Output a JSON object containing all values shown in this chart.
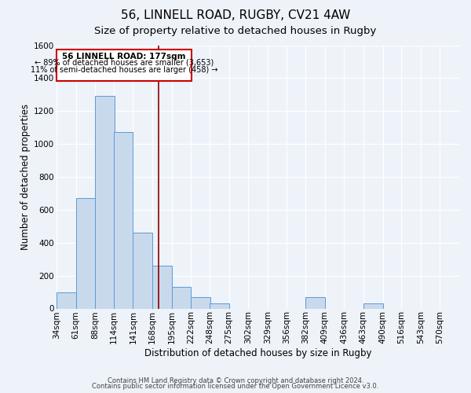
{
  "title": "56, LINNELL ROAD, RUGBY, CV21 4AW",
  "subtitle": "Size of property relative to detached houses in Rugby",
  "xlabel": "Distribution of detached houses by size in Rugby",
  "ylabel": "Number of detached properties",
  "footer_line1": "Contains HM Land Registry data © Crown copyright and database right 2024.",
  "footer_line2": "Contains public sector information licensed under the Open Government Licence v3.0.",
  "bin_labels": [
    "34sqm",
    "61sqm",
    "88sqm",
    "114sqm",
    "141sqm",
    "168sqm",
    "195sqm",
    "222sqm",
    "248sqm",
    "275sqm",
    "302sqm",
    "329sqm",
    "356sqm",
    "382sqm",
    "409sqm",
    "436sqm",
    "463sqm",
    "490sqm",
    "516sqm",
    "543sqm",
    "570sqm"
  ],
  "bin_left_edges": [
    34,
    61,
    88,
    114,
    141,
    168,
    195,
    222,
    248,
    275,
    302,
    329,
    356,
    382,
    409,
    436,
    463,
    490,
    516,
    543,
    570
  ],
  "bar_heights": [
    100,
    670,
    1290,
    1070,
    460,
    260,
    130,
    70,
    30,
    0,
    0,
    0,
    0,
    70,
    0,
    0,
    30,
    0,
    0,
    0
  ],
  "bar_color": "#c9d9ec",
  "bar_edge_color": "#5b9bd5",
  "property_size": 177,
  "vline_color": "#8b0000",
  "annotation_box_edge_color": "#cc0000",
  "annotation_text_line1": "56 LINNELL ROAD: 177sqm",
  "annotation_text_line2": "← 89% of detached houses are smaller (3,653)",
  "annotation_text_line3": "11% of semi-detached houses are larger (458) →",
  "ylim": [
    0,
    1600
  ],
  "yticks": [
    0,
    200,
    400,
    600,
    800,
    1000,
    1200,
    1400,
    1600
  ],
  "background_color": "#eef2f9",
  "plot_bg_color": "#eef2f9",
  "grid_color": "#ffffff",
  "title_fontsize": 11,
  "subtitle_fontsize": 9.5,
  "axis_label_fontsize": 8.5,
  "tick_fontsize": 7.5,
  "annotation_fontsize_line1": 7.5,
  "annotation_fontsize_rest": 7.0
}
